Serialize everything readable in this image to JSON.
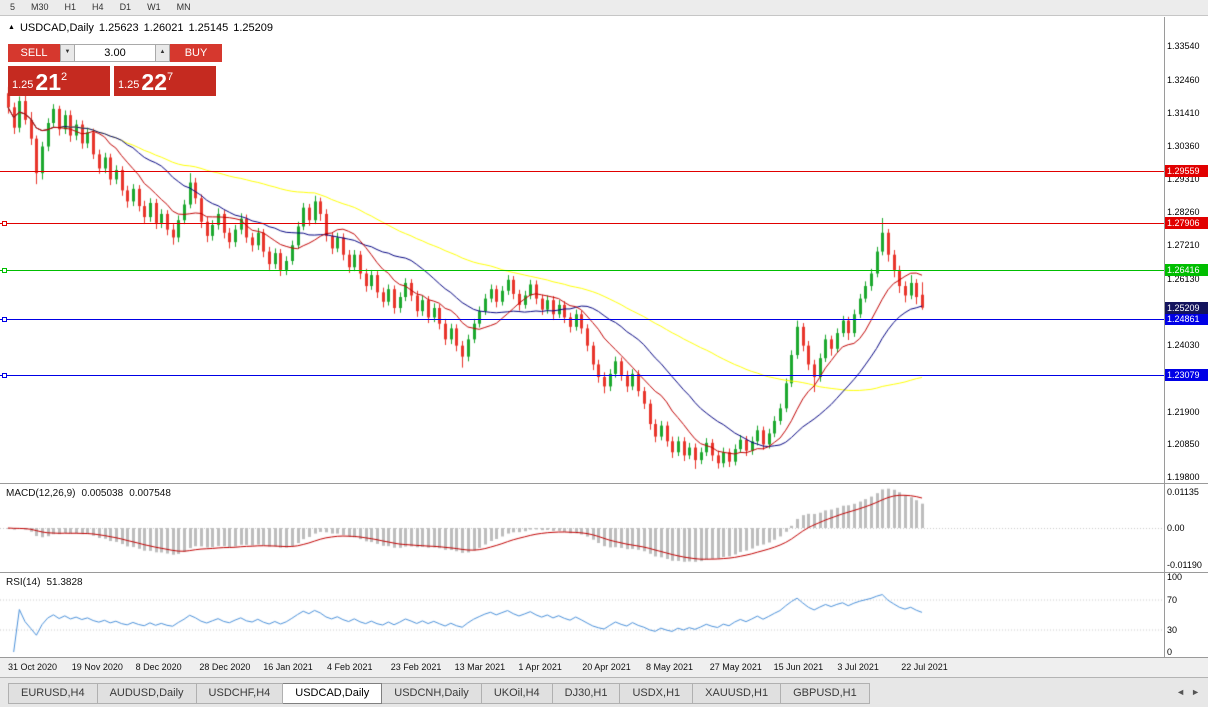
{
  "toolbar": {
    "timeframes": [
      "5",
      "M30",
      "H1",
      "H4",
      "D1",
      "W1",
      "MN"
    ]
  },
  "chart": {
    "marker_icon": "▲",
    "symbol": "USDCAD,Daily",
    "open": "1.25623",
    "high": "1.26021",
    "low": "1.25145",
    "close": "1.25209"
  },
  "trade_panel": {
    "sell_label": "SELL",
    "buy_label": "BUY",
    "volume": "3.00",
    "down_icon": "▼",
    "up_icon": "▲",
    "bid": {
      "small": "1.25",
      "big": "21",
      "sup": "2"
    },
    "ask": {
      "small": "1.25",
      "big": "22",
      "sup": "7"
    }
  },
  "price_axis": {
    "labels": [
      "1.33540",
      "1.32460",
      "1.31410",
      "1.30360",
      "1.29310",
      "1.28260",
      "1.27210",
      "1.26130",
      "1.24030",
      "1.22980",
      "1.21900",
      "1.20850",
      "1.19800"
    ]
  },
  "hlines": [
    {
      "price": "1.29559",
      "color": "#e10000",
      "anchor": false
    },
    {
      "price": "1.27906",
      "color": "#e10000",
      "anchor": true
    },
    {
      "price": "1.26416",
      "color": "#00be00",
      "anchor": true
    },
    {
      "price": "1.24861",
      "color": "#0000e6",
      "anchor": true
    },
    {
      "price": "1.23079",
      "color": "#0000e6",
      "anchor": true
    }
  ],
  "current_price_tag": {
    "text": "1.25209",
    "color": "#14145e"
  },
  "indicators": {
    "macd": {
      "name": "MACD(12,26,9)",
      "value_main": "0.005038",
      "value_signal": "0.007548",
      "fast": 12,
      "slow": 26,
      "signal": 9,
      "axis": [
        "0.01135",
        "0.00",
        "-0.01190"
      ],
      "histogram_color": "#bdbdbd",
      "signal_color": "#c00000"
    },
    "rsi": {
      "name": "RSI(14)",
      "value": "51.3828",
      "period": 14,
      "axis": [
        "100",
        "70",
        "30",
        "0"
      ],
      "levels": [
        70,
        30
      ],
      "line_color": "#4a90d9"
    }
  },
  "date_axis": [
    "31 Oct 2020",
    "19 Nov 2020",
    "8 Dec 2020",
    "28 Dec 2020",
    "16 Jan 2021",
    "4 Feb 2021",
    "23 Feb 2021",
    "13 Mar 2021",
    "1 Apr 2021",
    "20 Apr 2021",
    "8 May 2021",
    "27 May 2021",
    "15 Jun 2021",
    "3 Jul 2021",
    "22 Jul 2021"
  ],
  "tabs": [
    {
      "label": "EURUSD,H4",
      "active": false
    },
    {
      "label": "AUDUSD,Daily",
      "active": false
    },
    {
      "label": "USDCHF,H4",
      "active": false
    },
    {
      "label": "USDCAD,Daily",
      "active": true
    },
    {
      "label": "USDCNH,Daily",
      "active": false
    },
    {
      "label": "UKOil,H4",
      "active": false
    },
    {
      "label": "DJ30,H1",
      "active": false
    },
    {
      "label": "USDX,H1",
      "active": false
    },
    {
      "label": "XAUUSD,H1",
      "active": false
    },
    {
      "label": "GBPUSD,H1",
      "active": false
    }
  ],
  "tab_scroll": {
    "left_icon": "◄",
    "right_icon": "►"
  },
  "chart_data": {
    "type": "candlestick",
    "symbol": "USDCAD",
    "timeframe": "Daily",
    "ylim": [
      1.1962,
      1.3448
    ],
    "colors": {
      "up": "#1ca82e",
      "down": "#e8352b"
    },
    "ma": [
      {
        "period": 55,
        "color": "#ffff00"
      },
      {
        "period": 21,
        "color": "#000080"
      },
      {
        "period": 10,
        "color": "#c00000"
      }
    ],
    "candles": [
      [
        1.3205,
        1.3225,
        1.314,
        1.316
      ],
      [
        1.316,
        1.3175,
        1.3075,
        1.3095
      ],
      [
        1.3095,
        1.3195,
        1.308,
        1.318
      ],
      [
        1.318,
        1.32,
        1.3105,
        1.312
      ],
      [
        1.312,
        1.3145,
        1.304,
        1.306
      ],
      [
        1.306,
        1.307,
        1.2915,
        1.295
      ],
      [
        1.295,
        1.305,
        1.293,
        1.3035
      ],
      [
        1.3035,
        1.3125,
        1.302,
        1.311
      ],
      [
        1.311,
        1.317,
        1.3095,
        1.3155
      ],
      [
        1.3155,
        1.3165,
        1.307,
        1.309
      ],
      [
        1.309,
        1.315,
        1.3075,
        1.3135
      ],
      [
        1.3135,
        1.315,
        1.305,
        1.307
      ],
      [
        1.307,
        1.312,
        1.3055,
        1.3105
      ],
      [
        1.3105,
        1.3118,
        1.3028,
        1.3045
      ],
      [
        1.3045,
        1.3095,
        1.303,
        1.308
      ],
      [
        1.308,
        1.3092,
        1.2995,
        1.301
      ],
      [
        1.301,
        1.3025,
        1.2948,
        1.2965
      ],
      [
        1.2965,
        1.3015,
        1.295,
        1.3
      ],
      [
        1.3,
        1.3012,
        1.2912,
        1.293
      ],
      [
        1.293,
        1.2975,
        1.2915,
        1.296
      ],
      [
        1.296,
        1.2972,
        1.2878,
        1.2895
      ],
      [
        1.2895,
        1.291,
        1.284,
        1.286
      ],
      [
        1.286,
        1.2915,
        1.2845,
        1.29
      ],
      [
        1.29,
        1.2912,
        1.2828,
        1.2845
      ],
      [
        1.2845,
        1.2862,
        1.279,
        1.281
      ],
      [
        1.281,
        1.287,
        1.2795,
        1.2855
      ],
      [
        1.2855,
        1.2868,
        1.2772,
        1.279
      ],
      [
        1.279,
        1.2835,
        1.2775,
        1.282
      ],
      [
        1.282,
        1.2832,
        1.2752,
        1.277
      ],
      [
        1.277,
        1.2788,
        1.2722,
        1.2745
      ],
      [
        1.2745,
        1.2815,
        1.273,
        1.28
      ],
      [
        1.28,
        1.2865,
        1.2788,
        1.285
      ],
      [
        1.285,
        1.295,
        1.2838,
        1.292
      ],
      [
        1.292,
        1.2935,
        1.2852,
        1.287
      ],
      [
        1.287,
        1.2882,
        1.2775,
        1.2795
      ],
      [
        1.2795,
        1.281,
        1.273,
        1.275
      ],
      [
        1.275,
        1.28,
        1.2735,
        1.2785
      ],
      [
        1.2785,
        1.2838,
        1.277,
        1.282
      ],
      [
        1.282,
        1.2832,
        1.2742,
        1.276
      ],
      [
        1.276,
        1.2775,
        1.271,
        1.273
      ],
      [
        1.273,
        1.2785,
        1.2715,
        1.277
      ],
      [
        1.277,
        1.2822,
        1.2755,
        1.2805
      ],
      [
        1.2805,
        1.2818,
        1.2728,
        1.2745
      ],
      [
        1.2745,
        1.276,
        1.27,
        1.272
      ],
      [
        1.272,
        1.2775,
        1.2705,
        1.276
      ],
      [
        1.276,
        1.2772,
        1.2682,
        1.27
      ],
      [
        1.27,
        1.2715,
        1.264,
        1.266
      ],
      [
        1.266,
        1.271,
        1.2645,
        1.2695
      ],
      [
        1.2695,
        1.2708,
        1.2622,
        1.264
      ],
      [
        1.264,
        1.2685,
        1.2625,
        1.267
      ],
      [
        1.267,
        1.2735,
        1.2658,
        1.272
      ],
      [
        1.272,
        1.2795,
        1.2708,
        1.278
      ],
      [
        1.278,
        1.2855,
        1.2768,
        1.284
      ],
      [
        1.284,
        1.2852,
        1.2782,
        1.28
      ],
      [
        1.28,
        1.2878,
        1.2788,
        1.286
      ],
      [
        1.286,
        1.2872,
        1.2798,
        1.282
      ],
      [
        1.282,
        1.2835,
        1.2732,
        1.275
      ],
      [
        1.275,
        1.2762,
        1.2692,
        1.271
      ],
      [
        1.271,
        1.276,
        1.2698,
        1.2745
      ],
      [
        1.2745,
        1.2758,
        1.2672,
        1.269
      ],
      [
        1.269,
        1.2705,
        1.2632,
        1.265
      ],
      [
        1.265,
        1.2705,
        1.2638,
        1.269
      ],
      [
        1.269,
        1.2702,
        1.2612,
        1.263
      ],
      [
        1.263,
        1.2645,
        1.2572,
        1.259
      ],
      [
        1.259,
        1.264,
        1.2578,
        1.2625
      ],
      [
        1.2625,
        1.2638,
        1.2552,
        1.257
      ],
      [
        1.257,
        1.2585,
        1.2522,
        1.254
      ],
      [
        1.254,
        1.2595,
        1.2528,
        1.258
      ],
      [
        1.258,
        1.2592,
        1.2502,
        1.252
      ],
      [
        1.252,
        1.257,
        1.2505,
        1.2555
      ],
      [
        1.2555,
        1.2615,
        1.2542,
        1.26
      ],
      [
        1.26,
        1.2612,
        1.2542,
        1.256
      ],
      [
        1.256,
        1.2575,
        1.2492,
        1.251
      ],
      [
        1.251,
        1.256,
        1.2495,
        1.2545
      ],
      [
        1.2545,
        1.2558,
        1.2472,
        1.249
      ],
      [
        1.249,
        1.2535,
        1.2475,
        1.252
      ],
      [
        1.252,
        1.2532,
        1.2452,
        1.247
      ],
      [
        1.247,
        1.2485,
        1.2402,
        1.242
      ],
      [
        1.242,
        1.247,
        1.2405,
        1.2455
      ],
      [
        1.2455,
        1.2468,
        1.2382,
        1.24
      ],
      [
        1.24,
        1.2415,
        1.233,
        1.2365
      ],
      [
        1.2365,
        1.2435,
        1.235,
        1.242
      ],
      [
        1.242,
        1.2485,
        1.2408,
        1.247
      ],
      [
        1.247,
        1.2525,
        1.2458,
        1.251
      ],
      [
        1.251,
        1.2565,
        1.2498,
        1.255
      ],
      [
        1.255,
        1.2595,
        1.2538,
        1.258
      ],
      [
        1.258,
        1.2592,
        1.2522,
        1.254
      ],
      [
        1.254,
        1.259,
        1.2528,
        1.2575
      ],
      [
        1.2575,
        1.2625,
        1.2562,
        1.261
      ],
      [
        1.261,
        1.2622,
        1.2548,
        1.2565
      ],
      [
        1.2565,
        1.2578,
        1.2512,
        1.253
      ],
      [
        1.253,
        1.2575,
        1.2518,
        1.256
      ],
      [
        1.256,
        1.261,
        1.2548,
        1.2595
      ],
      [
        1.2595,
        1.2608,
        1.2532,
        1.255
      ],
      [
        1.255,
        1.2562,
        1.2498,
        1.2515
      ],
      [
        1.2515,
        1.256,
        1.2502,
        1.2545
      ],
      [
        1.2545,
        1.2558,
        1.2482,
        1.25
      ],
      [
        1.25,
        1.2545,
        1.2488,
        1.253
      ],
      [
        1.253,
        1.2542,
        1.2472,
        1.249
      ],
      [
        1.249,
        1.2505,
        1.2442,
        1.246
      ],
      [
        1.246,
        1.2515,
        1.2448,
        1.25
      ],
      [
        1.25,
        1.2512,
        1.2438,
        1.2455
      ],
      [
        1.2455,
        1.2468,
        1.2382,
        1.24
      ],
      [
        1.24,
        1.2412,
        1.2322,
        1.234
      ],
      [
        1.234,
        1.2355,
        1.2282,
        1.23
      ],
      [
        1.23,
        1.2315,
        1.2248,
        1.227
      ],
      [
        1.227,
        1.2325,
        1.2255,
        1.231
      ],
      [
        1.231,
        1.2365,
        1.2298,
        1.235
      ],
      [
        1.235,
        1.2362,
        1.2288,
        1.2305
      ],
      [
        1.2305,
        1.232,
        1.2252,
        1.227
      ],
      [
        1.227,
        1.2325,
        1.2258,
        1.231
      ],
      [
        1.231,
        1.2322,
        1.2238,
        1.2255
      ],
      [
        1.2255,
        1.2268,
        1.2198,
        1.2215
      ],
      [
        1.2215,
        1.2228,
        1.2132,
        1.215
      ],
      [
        1.215,
        1.2165,
        1.2092,
        1.211
      ],
      [
        1.211,
        1.216,
        1.2098,
        1.2145
      ],
      [
        1.2145,
        1.2158,
        1.2078,
        1.2095
      ],
      [
        1.2095,
        1.211,
        1.2042,
        1.206
      ],
      [
        1.206,
        1.211,
        1.2048,
        1.2095
      ],
      [
        1.2095,
        1.2108,
        1.2032,
        1.205
      ],
      [
        1.205,
        1.209,
        1.2038,
        1.2075
      ],
      [
        1.2075,
        1.2088,
        1.2007,
        1.2035
      ],
      [
        1.2035,
        1.2075,
        1.2022,
        1.206
      ],
      [
        1.206,
        1.2105,
        1.2048,
        1.209
      ],
      [
        1.209,
        1.2102,
        1.2032,
        1.205
      ],
      [
        1.205,
        1.2065,
        1.2008,
        1.2025
      ],
      [
        1.2025,
        1.2075,
        1.2012,
        1.206
      ],
      [
        1.206,
        1.2072,
        1.2013,
        1.203
      ],
      [
        1.203,
        1.2085,
        1.2018,
        1.207
      ],
      [
        1.207,
        1.2115,
        1.2058,
        1.21
      ],
      [
        1.21,
        1.2112,
        1.2048,
        1.2065
      ],
      [
        1.2065,
        1.211,
        1.2052,
        1.2095
      ],
      [
        1.2095,
        1.2145,
        1.2082,
        1.213
      ],
      [
        1.213,
        1.2142,
        1.2068,
        1.2085
      ],
      [
        1.2085,
        1.2135,
        1.2072,
        1.212
      ],
      [
        1.212,
        1.2175,
        1.2108,
        1.216
      ],
      [
        1.216,
        1.2215,
        1.2148,
        1.22
      ],
      [
        1.22,
        1.2295,
        1.2188,
        1.228
      ],
      [
        1.228,
        1.2385,
        1.2268,
        1.237
      ],
      [
        1.237,
        1.248,
        1.2358,
        1.246
      ],
      [
        1.246,
        1.2472,
        1.2382,
        1.24
      ],
      [
        1.24,
        1.2415,
        1.2322,
        1.234
      ],
      [
        1.234,
        1.2355,
        1.2252,
        1.23
      ],
      [
        1.23,
        1.2375,
        1.2285,
        1.236
      ],
      [
        1.236,
        1.2435,
        1.2348,
        1.242
      ],
      [
        1.242,
        1.2432,
        1.2368,
        1.239
      ],
      [
        1.239,
        1.2455,
        1.2378,
        1.244
      ],
      [
        1.244,
        1.2495,
        1.2428,
        1.248
      ],
      [
        1.248,
        1.2492,
        1.2418,
        1.244
      ],
      [
        1.244,
        1.2515,
        1.2428,
        1.25
      ],
      [
        1.25,
        1.2565,
        1.2488,
        1.255
      ],
      [
        1.255,
        1.2605,
        1.2538,
        1.259
      ],
      [
        1.259,
        1.2645,
        1.2575,
        1.263
      ],
      [
        1.263,
        1.2715,
        1.2618,
        1.27
      ],
      [
        1.27,
        1.2807,
        1.2688,
        1.276
      ],
      [
        1.276,
        1.2772,
        1.2668,
        1.269
      ],
      [
        1.269,
        1.2705,
        1.2618,
        1.264
      ],
      [
        1.264,
        1.2655,
        1.2568,
        1.259
      ],
      [
        1.259,
        1.2605,
        1.2538,
        1.256
      ],
      [
        1.256,
        1.2625,
        1.2548,
        1.26
      ],
      [
        1.26,
        1.2612,
        1.2532,
        1.2555
      ],
      [
        1.25623,
        1.26021,
        1.25145,
        1.25209
      ]
    ]
  }
}
